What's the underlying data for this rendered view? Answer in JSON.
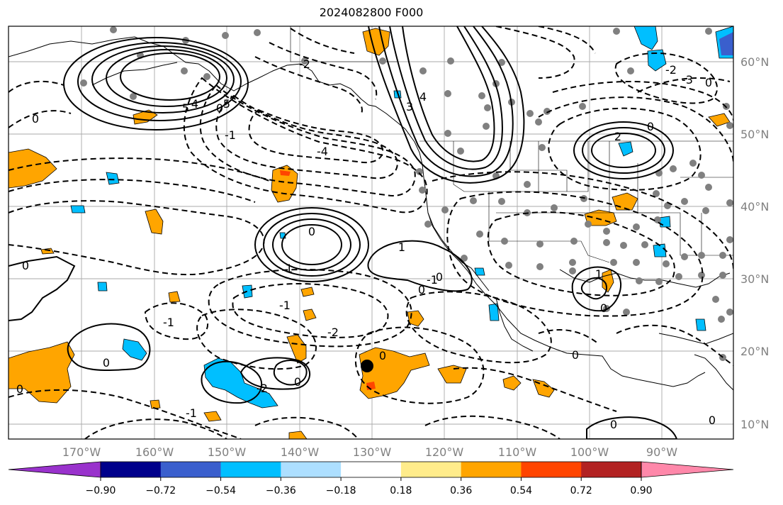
{
  "title": "2024082800 F000",
  "map": {
    "lat_labels": [
      "60°N",
      "50°N",
      "40°N",
      "30°N",
      "20°N",
      "10°N"
    ],
    "lon_labels": [
      "170°W",
      "160°W",
      "150°W",
      "140°W",
      "130°W",
      "120°W",
      "110°W",
      "100°W",
      "90°W"
    ],
    "contour_labels": [
      "0",
      "5",
      "4",
      "0",
      "5",
      "-1",
      "-4",
      "3",
      "4",
      "-2",
      "0",
      "-3",
      "-2",
      "2",
      "1",
      "-1",
      "0",
      "0",
      "1",
      "0",
      "1",
      "-1",
      "-2",
      "0",
      "0",
      "-1",
      "-2",
      "0",
      "0",
      "0",
      "0",
      "0",
      "-1",
      "0",
      "0",
      "0"
    ],
    "colors": {
      "grid": "#aaaaaa",
      "tick_labels": "#808080",
      "station_dots": "#808080",
      "positive_fill": "#FFA500",
      "positive_strong": "#FF4500",
      "negative_fill": "#00BFFF",
      "negative_strong": "#3A5FCD"
    }
  },
  "colorbar": {
    "tick_labels": [
      "−0.90",
      "−0.72",
      "−0.54",
      "−0.36",
      "−0.18",
      "0.18",
      "0.36",
      "0.54",
      "0.72",
      "0.90"
    ],
    "segments": [
      {
        "color": "#9932CC",
        "range": "< -0.90"
      },
      {
        "color": "#00008B",
        "range": "-0.90 to -0.72"
      },
      {
        "color": "#3A5FCD",
        "range": "-0.72 to -0.54"
      },
      {
        "color": "#00BFFF",
        "range": "-0.54 to -0.36"
      },
      {
        "color": "#ADDFFF",
        "range": "-0.36 to -0.18"
      },
      {
        "color": "#FFFFFF",
        "range": "-0.18 to 0.18"
      },
      {
        "color": "#FFEC8B",
        "range": "0.18 to 0.36"
      },
      {
        "color": "#FFA500",
        "range": "0.36 to 0.54"
      },
      {
        "color": "#FF4500",
        "range": "0.54 to 0.72"
      },
      {
        "color": "#B22222",
        "range": "0.72 to 0.90"
      },
      {
        "color": "#FF88AA",
        "range": "> 0.90"
      }
    ]
  }
}
